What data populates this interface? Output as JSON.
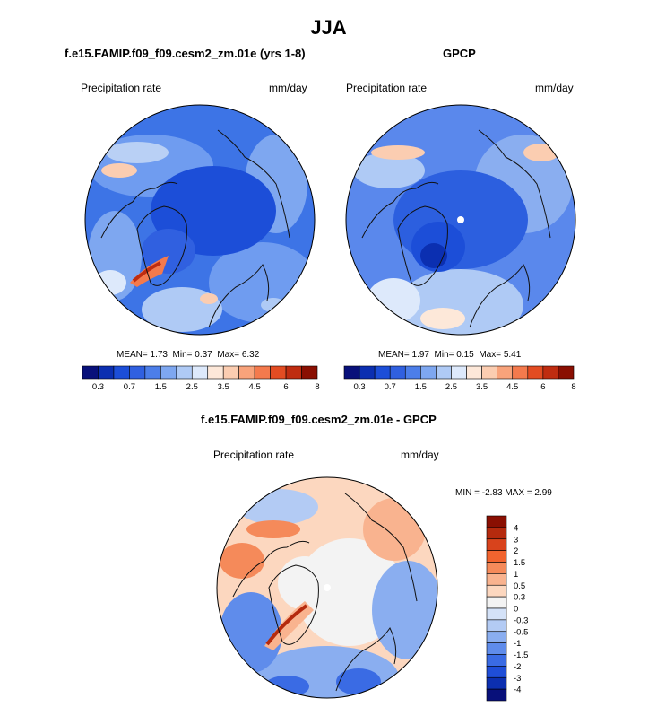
{
  "figure": {
    "title": "JJA"
  },
  "colors": {
    "map_ocean": "#3d74e6",
    "coast": "#111111",
    "pole_marker": "#ffffff"
  },
  "chart_data": [
    {
      "type": "heatmap",
      "title": "f.e15.FAMIP.f09_f09.cesm2_zm.01e (yrs 1-8)",
      "variable": "Precipitation rate",
      "units": "mm/day",
      "projection": "north polar stereographic",
      "stats": {
        "mean": "1.73",
        "min": "0.37",
        "max": "6.32"
      },
      "stats_labels": {
        "mean": "MEAN=",
        "min": "Min=",
        "max": "Max="
      },
      "colorbar": {
        "orientation": "horizontal",
        "colors": [
          "#08107a",
          "#0b2fb1",
          "#1c4ed8",
          "#3060e0",
          "#4c7ee9",
          "#7ea7f0",
          "#afcaf5",
          "#dde9fb",
          "#fde8d9",
          "#fbcdb1",
          "#f8a37b",
          "#f47a4d",
          "#e34c22",
          "#bf2c10",
          "#8a0f02"
        ],
        "tick_labels": [
          "0.3",
          "0.7",
          "1.5",
          "2.5",
          "3.5",
          "4.5",
          "6",
          "8"
        ]
      }
    },
    {
      "type": "heatmap",
      "title": "GPCP",
      "variable": "Precipitation rate",
      "units": "mm/day",
      "projection": "north polar stereographic",
      "stats": {
        "mean": "1.97",
        "min": "0.15",
        "max": "5.41"
      },
      "stats_labels": {
        "mean": "MEAN=",
        "min": "Min=",
        "max": "Max="
      },
      "colorbar": {
        "orientation": "horizontal",
        "colors": [
          "#08107a",
          "#0b2fb1",
          "#1c4ed8",
          "#3060e0",
          "#4c7ee9",
          "#7ea7f0",
          "#afcaf5",
          "#dde9fb",
          "#fde8d9",
          "#fbcdb1",
          "#f8a37b",
          "#f47a4d",
          "#e34c22",
          "#bf2c10",
          "#8a0f02"
        ],
        "tick_labels": [
          "0.3",
          "0.7",
          "1.5",
          "2.5",
          "3.5",
          "4.5",
          "6",
          "8"
        ]
      }
    },
    {
      "type": "heatmap",
      "title": "f.e15.FAMIP.f09_f09.cesm2_zm.01e - GPCP",
      "variable": "Precipitation rate",
      "units": "mm/day",
      "projection": "north polar stereographic",
      "stats": {
        "min": "-2.83",
        "max": "2.99"
      },
      "stats_labels": {
        "min": "MIN =",
        "max": "MAX ="
      },
      "colorbar": {
        "orientation": "vertical",
        "colors": [
          "#8a0f02",
          "#b52a0e",
          "#d8431c",
          "#f2642f",
          "#f58a5a",
          "#f9b38f",
          "#fcd7bf",
          "#f3f3f3",
          "#d4e2f8",
          "#b3cbf4",
          "#8aaef0",
          "#5f8ceb",
          "#3a6be4",
          "#1f4ed8",
          "#0c2fb0",
          "#08107a"
        ],
        "tick_labels": [
          "4",
          "3",
          "2",
          "1.5",
          "1",
          "0.5",
          "0.3",
          "0",
          "-0.3",
          "-0.5",
          "-1",
          "-1.5",
          "-2",
          "-3",
          "-4"
        ]
      }
    }
  ]
}
